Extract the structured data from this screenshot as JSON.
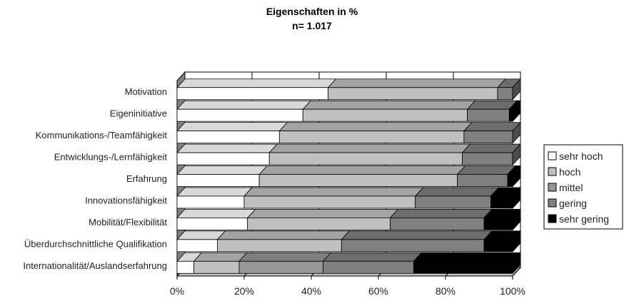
{
  "chart_data": {
    "type": "bar",
    "stacked": "percent",
    "orientation": "horizontal",
    "title": "Eigenschaften in %",
    "subtitle": "n= 1.017",
    "xlim": [
      0,
      100
    ],
    "x_ticks": [
      "0%",
      "20%",
      "40%",
      "60%",
      "80%",
      "100%"
    ],
    "grid": true,
    "legend_position": "right",
    "categories": [
      "Motivation",
      "Eigeninitiative",
      "Kommunikations-/Teamfähigkeit",
      "Entwicklungs-/Lernfähigkeit",
      "Erfahrung",
      "Innovationsfähigkeit",
      "Mobilität/Flexibilität",
      "Überdurchschnittliche Qualifikation",
      "Internationalität/Auslandserfahrung"
    ],
    "series": [
      {
        "name": "sehr hoch",
        "color": "#ffffff",
        "values": [
          45,
          37.5,
          30.5,
          27.5,
          24.5,
          20,
          21,
          12,
          5
        ]
      },
      {
        "name": "hoch",
        "color": "#c0c0c0",
        "values": [
          50.5,
          49,
          55,
          57.5,
          59,
          51,
          42.5,
          37,
          13.5
        ]
      },
      {
        "name": "mittel",
        "color": "#969696",
        "values": [
          0,
          0,
          0,
          0,
          0,
          0,
          0,
          0,
          25
        ]
      },
      {
        "name": "gering",
        "color": "#808080",
        "values": [
          4.5,
          12.5,
          14.5,
          15,
          15,
          22.5,
          28,
          42.5,
          27
        ]
      },
      {
        "name": "sehr gering",
        "color": "#000000",
        "values": [
          0,
          1,
          0,
          0,
          1.5,
          6.5,
          8.5,
          8.5,
          29.5
        ]
      }
    ]
  }
}
